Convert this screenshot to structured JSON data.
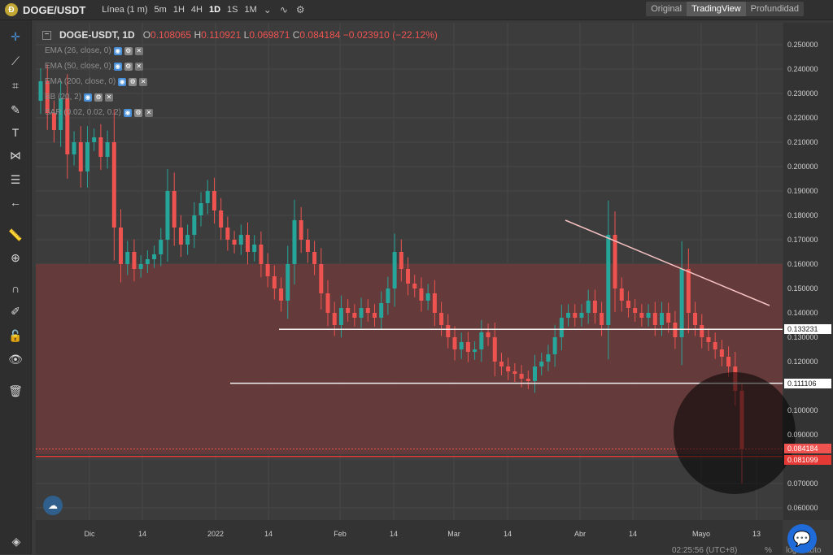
{
  "topbar": {
    "pair": "DOGE/USDT",
    "line_label": "Línea (1 m)",
    "timeframes": [
      "5m",
      "1H",
      "4H",
      "1D",
      "1S",
      "1M"
    ],
    "active_timeframe": "1D",
    "views": [
      "Original",
      "TradingView",
      "Profundidad"
    ],
    "active_view": "TradingView"
  },
  "legend": {
    "symbol": "DOGE-USDT, 1D",
    "O_label": "O",
    "O": "0.108065",
    "H_label": "H",
    "H": "0.110921",
    "L_label": "L",
    "L": "0.069871",
    "C_label": "C",
    "C": "0.084184",
    "change": "−0.023910 (−22.12%)"
  },
  "indicators": [
    "EMA (26, close, 0)",
    "EMA (50, close, 0)",
    "EMA (200, close, 0)",
    "BB (20, 2)",
    "SAR (0.02, 0.02, 0.2)"
  ],
  "yaxis": {
    "ticks": [
      "0.250000",
      "0.240000",
      "0.230000",
      "0.220000",
      "0.210000",
      "0.200000",
      "0.190000",
      "0.180000",
      "0.170000",
      "0.160000",
      "0.150000",
      "0.140000",
      "0.130000",
      "0.120000",
      "0.110000",
      "0.100000",
      "0.090000",
      "0.080000",
      "0.070000",
      "0.060000"
    ],
    "level_labels": [
      "0.133231",
      "0.111106"
    ],
    "last_price": "0.084184",
    "alert_price": "0.081099"
  },
  "xaxis": {
    "ticks": [
      "Dic",
      "14",
      "2022",
      "14",
      "Feb",
      "14",
      "Mar",
      "14",
      "Abr",
      "14",
      "Mayo",
      "13"
    ]
  },
  "status": {
    "time": "02:25:56 (UTC+8)",
    "percent": "%",
    "log": "log",
    "auto": "auto"
  },
  "colors": {
    "up": "#26a69a",
    "down": "#ef5350",
    "zone": "#6b3a3a",
    "accent": "#1f6bd9"
  },
  "chart_data": {
    "type": "candlestick",
    "title": "DOGE-USDT, 1D",
    "ylim": [
      0.055,
      0.26
    ],
    "last_candle": {
      "open": 0.108065,
      "high": 0.110921,
      "low": 0.069871,
      "close": 0.084184
    },
    "horizontal_levels": [
      0.133231,
      0.111106,
      0.081099
    ],
    "zone": [
      0.082,
      0.16
    ],
    "trendline": [
      [
        0.178,
        "Abr"
      ],
      [
        0.143,
        "Mayo"
      ]
    ],
    "closes": [
      0.235,
      0.222,
      0.215,
      0.228,
      0.205,
      0.21,
      0.198,
      0.21,
      0.212,
      0.204,
      0.21,
      0.175,
      0.16,
      0.165,
      0.158,
      0.16,
      0.162,
      0.164,
      0.17,
      0.19,
      0.175,
      0.168,
      0.172,
      0.18,
      0.185,
      0.19,
      0.182,
      0.175,
      0.17,
      0.168,
      0.172,
      0.165,
      0.168,
      0.16,
      0.155,
      0.15,
      0.145,
      0.16,
      0.178,
      0.17,
      0.165,
      0.16,
      0.148,
      0.14,
      0.135,
      0.142,
      0.14,
      0.138,
      0.142,
      0.14,
      0.138,
      0.144,
      0.15,
      0.165,
      0.158,
      0.152,
      0.15,
      0.145,
      0.148,
      0.14,
      0.135,
      0.13,
      0.125,
      0.128,
      0.124,
      0.125,
      0.132,
      0.13,
      0.12,
      0.118,
      0.116,
      0.115,
      0.113,
      0.112,
      0.118,
      0.12,
      0.123,
      0.13,
      0.138,
      0.14,
      0.138,
      0.14,
      0.145,
      0.14,
      0.135,
      0.172,
      0.15,
      0.145,
      0.142,
      0.14,
      0.138,
      0.14,
      0.135,
      0.14,
      0.136,
      0.13,
      0.158,
      0.14,
      0.135,
      0.13,
      0.128,
      0.125,
      0.122,
      0.118,
      0.108,
      0.084
    ]
  }
}
